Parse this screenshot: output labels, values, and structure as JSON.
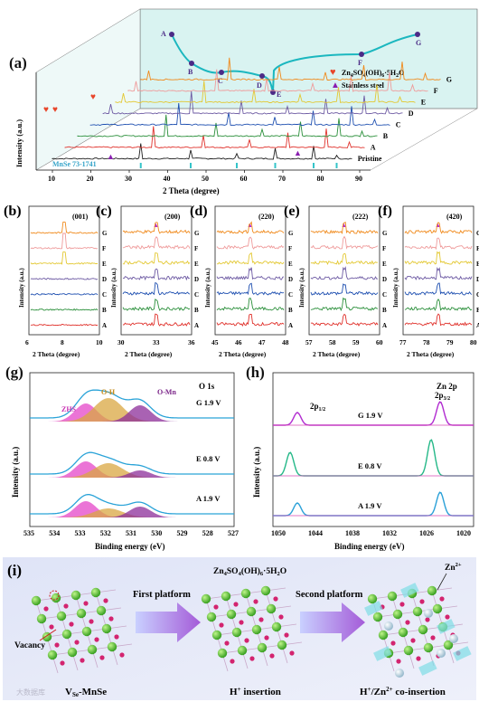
{
  "panel_a": {
    "label": "(a)",
    "xlabel": "2 Theta (degree)",
    "ylabel": "Intensity (a.u.)",
    "xticks": [
      "10",
      "20",
      "30",
      "40",
      "50",
      "60",
      "70",
      "80",
      "90"
    ],
    "series_labels": [
      "Pristine",
      "A",
      "B",
      "C",
      "D",
      "E",
      "F",
      "G"
    ],
    "ref_label": "MnSe 73-1741",
    "legend": [
      {
        "symbol": "heart-icon",
        "text": "Zn4SO4(OH)6·5H2O",
        "color": "#e8452a"
      },
      {
        "symbol": "triangle-icon",
        "text": "Stainless steel",
        "color": "#8a1fb0"
      }
    ],
    "curve_points": [
      "A",
      "B",
      "C",
      "D",
      "E",
      "F",
      "G"
    ]
  },
  "zoom_panels": [
    {
      "label": "(b)",
      "peak": "(001)",
      "xticks": [
        "6",
        "8",
        "10"
      ],
      "xlabel": "2 Theta (degree)",
      "ylabel": "Intensity (a.u.)"
    },
    {
      "label": "(c)",
      "peak": "(200)",
      "xticks": [
        "30",
        "33",
        "36"
      ],
      "xlabel": "2 Theta (degree)",
      "ylabel": "Intensity (a.u.)"
    },
    {
      "label": "(d)",
      "peak": "(220)",
      "xticks": [
        "45",
        "46",
        "47",
        "48"
      ],
      "xlabel": "2 Theta (degree)",
      "ylabel": "Intensity (a.u.)"
    },
    {
      "label": "(e)",
      "peak": "(222)",
      "xticks": [
        "57",
        "58",
        "59",
        "60"
      ],
      "xlabel": "2 Theta (degree)",
      "ylabel": "Intensity (a.u.)"
    },
    {
      "label": "(f)",
      "peak": "(420)",
      "xticks": [
        "77",
        "78",
        "79",
        "80"
      ],
      "xlabel": "2 Theta (degree)",
      "ylabel": "Intensity (a.u.)"
    }
  ],
  "zoom_series": [
    "A",
    "B",
    "C",
    "D",
    "E",
    "F",
    "G"
  ],
  "panel_g": {
    "label": "(g)",
    "title": "O 1s",
    "xlabel": "Binding energy (eV)",
    "ylabel": "Intensity (a.u.)",
    "xticks": [
      "535",
      "534",
      "533",
      "532",
      "531",
      "530",
      "529",
      "528",
      "527"
    ],
    "peaks": [
      "ZHS",
      "O-H",
      "O-Mn"
    ],
    "curves": [
      "G 1.9 V",
      "E 0.8 V",
      "A 1.9 V"
    ]
  },
  "panel_h": {
    "label": "(h)",
    "title": "Zn 2p",
    "xlabel": "Binding energy (eV)",
    "ylabel": "Intensity (a.u.)",
    "xticks": [
      "1050",
      "1044",
      "1038",
      "1032",
      "1026",
      "1020"
    ],
    "peaks": [
      "2p1/2",
      "2p3/2"
    ],
    "curves": [
      "G 1.9 V",
      "E 0.8 V",
      "A 1.9 V"
    ]
  },
  "panel_i": {
    "label": "(i)",
    "vacancy": "Vacancy",
    "step1": "First platform",
    "step2": "Second platform",
    "phase": "Zn4SO4(OH)6·5H2O",
    "ion": "Zn2+",
    "captions": [
      "VSe-MnSe",
      "H+ insertion",
      "H+/Zn2+ co-insertion"
    ]
  },
  "colors": {
    "Pristine": "#1f1f1f",
    "A": "#e0312b",
    "B": "#2a8f3a",
    "C": "#1e4fb0",
    "D": "#6d5aa3",
    "E": "#e3c832",
    "F": "#ef9b9b",
    "G": "#f08a1c",
    "teal": "#35c4c9",
    "zhs": "#e445c8",
    "oh": "#d9a742",
    "omn": "#8c2e9a",
    "envelope": "#2aa3d8",
    "zn": "#25b888",
    "zn_purple": "#b12bd0"
  },
  "watermark": "大数据库"
}
